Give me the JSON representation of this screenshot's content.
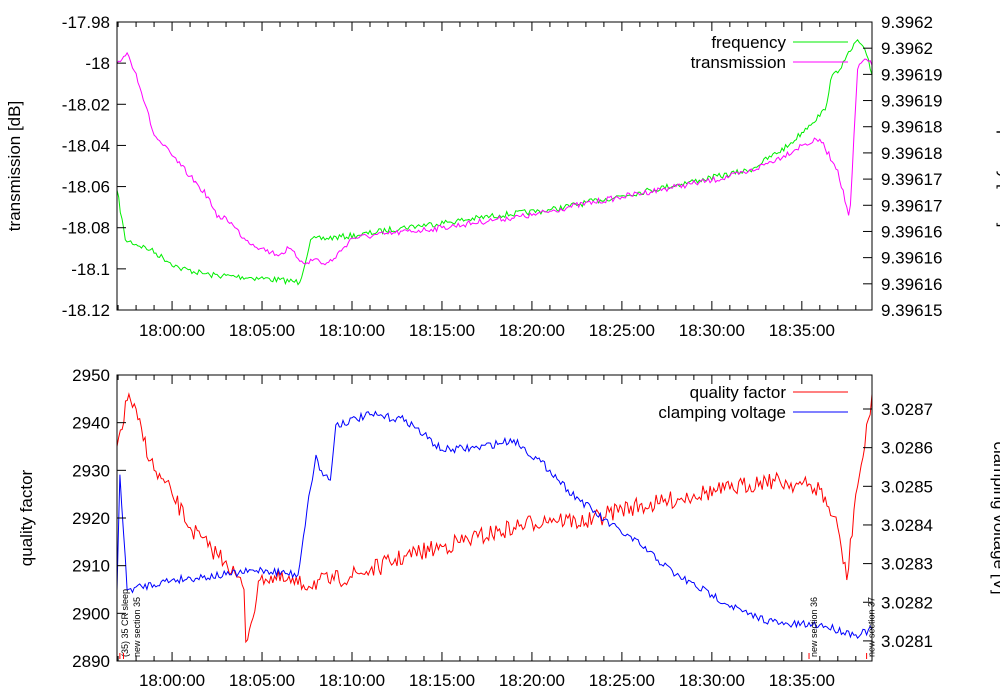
{
  "chart_data": [
    {
      "type": "line",
      "x_unit": "minutes after 18:00:00",
      "xlim": [
        -3.06,
        38.9
      ],
      "xticks": [
        0,
        5,
        10,
        15,
        20,
        25,
        30,
        35
      ],
      "xtick_labels": [
        "18:00:00",
        "18:05:00",
        "18:10:00",
        "18:15:00",
        "18:20:00",
        "18:25:00",
        "18:30:00",
        "18:35:00"
      ],
      "ylabel": "transmission [dB]",
      "ylim": [
        -18.12,
        -17.98
      ],
      "yticks": [
        -18.12,
        -18.1,
        -18.08,
        -18.06,
        -18.04,
        -18.02,
        -18,
        -17.98
      ],
      "ytick_labels": [
        "-18.12",
        "-18.1",
        "-18.08",
        "-18.06",
        "-18.04",
        "-18.02",
        "-18",
        "-17.98"
      ],
      "y2label": "frequency [GHz]",
      "y2lim": [
        9.39615,
        9.396205
      ],
      "y2tick_labels": [
        "9.39615",
        "9.39616",
        "9.39616",
        "9.39616",
        "9.39617",
        "9.39617",
        "9.39618",
        "9.39618",
        "9.39619",
        "9.39619",
        "9.3962",
        "9.3962"
      ],
      "legend": "top-right",
      "series": [
        {
          "name": "frequency",
          "axis": "y2",
          "color": "#00ee00",
          "x": [
            -3.06,
            -2.6,
            -1.2,
            0.4,
            2.1,
            4.9,
            7.1,
            7.7,
            10.4,
            12.7,
            15.4,
            18.2,
            21,
            23.8,
            26.6,
            29.3,
            32.1,
            34.3,
            35.4,
            36.3,
            36.6,
            37.4,
            38.1,
            38.6,
            38.9
          ],
          "y": [
            9.3961729,
            9.3961634,
            9.3961615,
            9.396158,
            9.3961567,
            9.3961561,
            9.3961553,
            9.3961634,
            9.3961643,
            9.3961657,
            9.3961668,
            9.3961681,
            9.3961691,
            9.396171,
            9.3961729,
            9.3961748,
            9.3961767,
            9.3961815,
            9.3961853,
            9.3961882,
            9.3961939,
            9.3961977,
            9.3962016,
            9.3961987,
            9.3961949
          ]
        },
        {
          "name": "transmission",
          "axis": "y",
          "color": "#ff00ff",
          "x": [
            -3.06,
            -2.5,
            -2,
            -1.5,
            -1,
            -0.5,
            0,
            0.5,
            1,
            1.5,
            2,
            2.5,
            3,
            3.5,
            4,
            4.5,
            5,
            5.5,
            6,
            6.5,
            7,
            7.5,
            8,
            8.5,
            9,
            9.5,
            10,
            12,
            15,
            18,
            20,
            22,
            25,
            28,
            30,
            32,
            34,
            35,
            36,
            37,
            37.6,
            37.7,
            38.1,
            38.5,
            38.9
          ],
          "y": [
            -18.0,
            -17.995,
            -18.005,
            -18.02,
            -18.035,
            -18.04,
            -18.045,
            -18.05,
            -18.055,
            -18.06,
            -18.065,
            -18.075,
            -18.075,
            -18.08,
            -18.085,
            -18.088,
            -18.09,
            -18.092,
            -18.093,
            -18.09,
            -18.095,
            -18.097,
            -18.095,
            -18.098,
            -18.095,
            -18.09,
            -18.085,
            -18.083,
            -18.08,
            -18.076,
            -18.074,
            -18.07,
            -18.065,
            -18.06,
            -18.057,
            -18.053,
            -18.045,
            -18.04,
            -18.037,
            -18.052,
            -18.074,
            -18.069,
            -18.003,
            -17.998,
            -18.001
          ]
        }
      ]
    },
    {
      "type": "line",
      "x_unit": "minutes after 18:00:00",
      "xlim": [
        -3.06,
        38.9
      ],
      "xticks": [
        0,
        5,
        10,
        15,
        20,
        25,
        30,
        35
      ],
      "xtick_labels": [
        "18:00:00",
        "18:05:00",
        "18:10:00",
        "18:15:00",
        "18:20:00",
        "18:25:00",
        "18:30:00",
        "18:35:00"
      ],
      "ylabel": "quality factor",
      "ylim": [
        2890,
        2950
      ],
      "yticks": [
        2890,
        2900,
        2910,
        2920,
        2930,
        2940,
        2950
      ],
      "ytick_labels": [
        "2890",
        "2900",
        "2910",
        "2920",
        "2930",
        "2940",
        "2950"
      ],
      "y2label": "clamping voltage [V]",
      "y2lim": [
        3.028048,
        3.028788
      ],
      "y2ticks": [
        3.0281,
        3.0282,
        3.0283,
        3.0284,
        3.0285,
        3.0286,
        3.0287
      ],
      "y2tick_labels": [
        "3.0281",
        "3.0282",
        "3.0283",
        "3.0284",
        "3.0285",
        "3.0286",
        "3.0287"
      ],
      "legend": "top-right",
      "annotations": [
        {
          "x": -2.9,
          "text": "(35) 35 CR sleep"
        },
        {
          "x": -2.7,
          "text": "new section 35"
        },
        {
          "x": 35.4,
          "text": "new section 36"
        },
        {
          "x": 38.6,
          "text": "new section 37"
        }
      ],
      "series": [
        {
          "name": "quality factor",
          "axis": "y",
          "color": "#ff0000",
          "x": [
            -3.06,
            -2.4,
            -1,
            0,
            1,
            2,
            3,
            4,
            4.1,
            5,
            7,
            9,
            11,
            13,
            15,
            17,
            19,
            21,
            23,
            25,
            27,
            29,
            31,
            33,
            35,
            36,
            37,
            37.5,
            38,
            38.5,
            38.9
          ],
          "y": [
            2935,
            2946,
            2930,
            2925,
            2918,
            2914,
            2911,
            2905,
            2894,
            2908,
            2906,
            2907,
            2909,
            2912,
            2914,
            2916,
            2918,
            2920,
            2919,
            2922,
            2923,
            2925,
            2926,
            2928,
            2927,
            2926,
            2918,
            2907,
            2925,
            2935,
            2946
          ]
        },
        {
          "name": "clamping voltage",
          "axis": "y2",
          "color": "#0000ff",
          "x": [
            -3.06,
            -2.9,
            -2.5,
            0,
            3,
            5,
            7,
            7.5,
            8,
            8.2,
            8.8,
            9.1,
            11,
            13,
            15,
            17,
            19,
            21,
            22,
            24,
            26,
            28,
            30,
            32,
            34,
            36,
            38,
            38.9
          ],
          "y": [
            3.02823,
            3.02853,
            3.028232,
            3.028258,
            3.028271,
            3.028284,
            3.028271,
            3.028439,
            3.028581,
            3.028542,
            3.028516,
            3.028659,
            3.028685,
            3.028672,
            3.028594,
            3.0286,
            3.02862,
            3.028542,
            3.028491,
            3.028413,
            3.028349,
            3.028271,
            3.028219,
            3.028168,
            3.028142,
            3.028142,
            3.028116,
            3.028129
          ]
        }
      ]
    }
  ]
}
